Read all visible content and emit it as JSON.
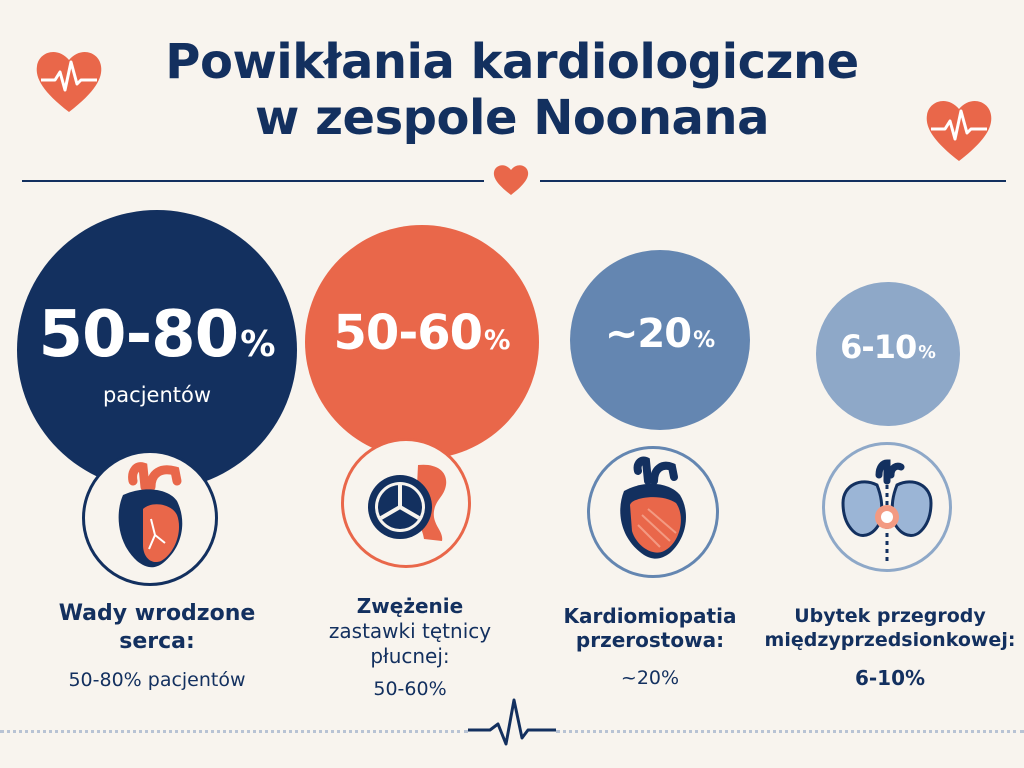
{
  "title": {
    "line1": "Powikłania kardiologiczne",
    "line2": "w zespole Noonana"
  },
  "colors": {
    "navy": "#13305f",
    "coral": "#e9674a",
    "steel": "#6486b1",
    "light_steel": "#8ea8c8",
    "background": "#f8f4ee"
  },
  "stats": [
    {
      "value": "50-80",
      "unit": "%",
      "sub": "pacjentów",
      "color": "#13305f",
      "icon": "heart-anatomy-icon",
      "label": [
        "Wady wrodzone",
        "serca:"
      ],
      "label_value": "50-80% pacjentów"
    },
    {
      "value": "50-60",
      "unit": "%",
      "sub": "",
      "color": "#e9674a",
      "icon": "pulmonary-valve-icon",
      "label": [
        "Zwężenie",
        "zastawki tętnicy",
        "płucnej:"
      ],
      "label_value": "50-60%"
    },
    {
      "value": "~20",
      "unit": "%",
      "sub": "",
      "color": "#6486b1",
      "icon": "hypertrophic-heart-icon",
      "label": [
        "Kardiomiopatia",
        "przerostowa:"
      ],
      "label_value": "~20%"
    },
    {
      "value": "6-10",
      "unit": "%",
      "sub": "",
      "color": "#8ea8c8",
      "icon": "septal-defect-heart-icon",
      "label": [
        "Ubytek przegrody",
        "międzyprzedsionkowej:"
      ],
      "label_value": "6-10%"
    }
  ],
  "decorations": {
    "heart_left": "heart-pulse-icon",
    "heart_right": "heart-pulse-icon",
    "heart_divider": "heart-icon",
    "footer": "ecg-line-icon"
  }
}
